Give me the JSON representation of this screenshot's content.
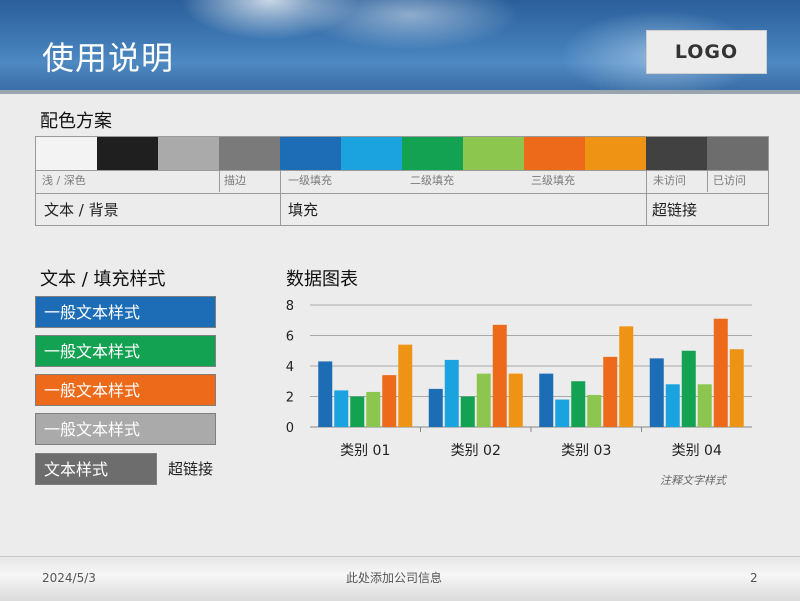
{
  "header": {
    "title": "使用说明",
    "logo": "LOGO"
  },
  "color_scheme": {
    "title": "配色方案",
    "swatches": [
      "#f3f3f3",
      "#1f1f1f",
      "#aaaaaa",
      "#7a7a7a",
      "#1c6db5",
      "#1aa3df",
      "#13a152",
      "#8dc64f",
      "#ec6a19",
      "#ef9315",
      "#414141",
      "#6d6d6d"
    ],
    "small_labels": [
      "浅 / 深色",
      "描边",
      "一级填充",
      "二级填充",
      "三级填充",
      "未访问",
      "已访问"
    ],
    "big_labels": [
      "文本 / 背景",
      "填充",
      "超链接"
    ]
  },
  "text_styles": {
    "title": "文本 / 填充样式",
    "boxes": [
      {
        "label": "一般文本样式",
        "color": "#1c6db5"
      },
      {
        "label": "一般文本样式",
        "color": "#13a152"
      },
      {
        "label": "一般文本样式",
        "color": "#ec6a19"
      },
      {
        "label": "一般文本样式",
        "color": "#aaaaaa"
      },
      {
        "label": "文本样式",
        "color": "#6d6d6d"
      }
    ],
    "hyperlink": "超链接"
  },
  "chart_section": {
    "title": "数据图表",
    "note": "注释文字样式"
  },
  "chart_data": {
    "type": "bar",
    "categories": [
      "类别 01",
      "类别 02",
      "类别 03",
      "类别 04"
    ],
    "series": [
      {
        "values": [
          4.3,
          2.5,
          3.5,
          4.5
        ],
        "color": "#1c6db5"
      },
      {
        "values": [
          2.4,
          4.4,
          1.8,
          2.8
        ],
        "color": "#1aa3df"
      },
      {
        "values": [
          2.0,
          2.0,
          3.0,
          5.0
        ],
        "color": "#13a152"
      },
      {
        "values": [
          2.3,
          3.5,
          2.1,
          2.8
        ],
        "color": "#8dc64f"
      },
      {
        "values": [
          3.4,
          6.7,
          4.6,
          7.1
        ],
        "color": "#ec6a19"
      },
      {
        "values": [
          5.4,
          3.5,
          6.6,
          5.1
        ],
        "color": "#ef9315"
      }
    ],
    "ylim": [
      0,
      8
    ],
    "yticks": [
      0,
      2,
      4,
      6,
      8
    ],
    "grid": true,
    "legend": "none"
  },
  "footer": {
    "date": "2024/5/3",
    "company": "此处添加公司信息",
    "page": "2"
  }
}
